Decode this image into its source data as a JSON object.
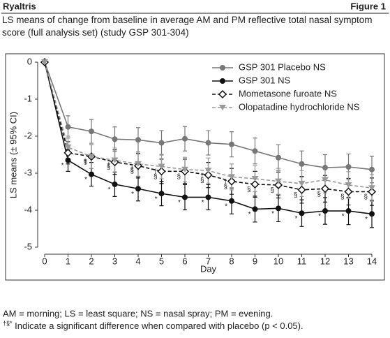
{
  "header": {
    "left": "Ryaltris",
    "right": "Figure 1"
  },
  "chart_data": {
    "type": "line",
    "title": "LS means of change from baseline in average AM and PM reflective total nasal symptom score (full analysis set) (study GSP 301-304)",
    "x_label": "Day",
    "y_label": "LS means (± 95% CI)",
    "x": [
      0,
      1,
      2,
      3,
      4,
      5,
      6,
      7,
      8,
      9,
      10,
      11,
      12,
      13,
      14
    ],
    "xlim": [
      0,
      14
    ],
    "xticks": [
      0,
      1,
      2,
      3,
      4,
      5,
      6,
      7,
      8,
      9,
      10,
      11,
      12,
      13,
      14
    ],
    "ylim": [
      -5,
      0
    ],
    "yticks": [
      0,
      -1,
      -2,
      -3,
      -4,
      -5
    ],
    "legend": "top-right",
    "series": [
      {
        "name": "GSP 301 Placebo NS",
        "color": "#777777",
        "dashed": false,
        "marker": "circle",
        "values": [
          0,
          -1.75,
          -1.87,
          -2.08,
          -2.1,
          -2.18,
          -2.07,
          -2.18,
          -2.22,
          -2.4,
          -2.58,
          -2.75,
          -2.85,
          -2.83,
          -2.9
        ],
        "errors": [
          0,
          0.3,
          0.32,
          0.33,
          0.33,
          0.33,
          0.33,
          0.33,
          0.34,
          0.35,
          0.35,
          0.35,
          0.35,
          0.35,
          0.36
        ],
        "symbols": [
          null,
          null,
          null,
          null,
          null,
          null,
          null,
          null,
          null,
          null,
          null,
          null,
          null,
          null,
          null
        ]
      },
      {
        "name": "GSP 301 NS",
        "color": "#111111",
        "dashed": false,
        "marker": "circle",
        "values": [
          0,
          -2.65,
          -3.03,
          -3.3,
          -3.42,
          -3.55,
          -3.65,
          -3.65,
          -3.75,
          -3.97,
          -3.95,
          -4.08,
          -4.02,
          -4.02,
          -4.1
        ],
        "errors": [
          0,
          0.3,
          0.32,
          0.33,
          0.33,
          0.33,
          0.34,
          0.34,
          0.35,
          0.35,
          0.36,
          0.36,
          0.36,
          0.37,
          0.37
        ],
        "symbols": [
          null,
          "*",
          "*",
          "*",
          "*",
          "*",
          "*",
          "*",
          "*",
          "*",
          "*",
          "*",
          "*",
          "*",
          "*"
        ]
      },
      {
        "name": "Mometasone furoate NS",
        "color": "#111111",
        "dashed": true,
        "marker": "diamond-open",
        "values": [
          0,
          -2.45,
          -2.55,
          -2.7,
          -2.8,
          -2.95,
          -2.95,
          -3.05,
          -3.22,
          -3.3,
          -3.32,
          -3.45,
          -3.42,
          -3.5,
          -3.5
        ],
        "errors": [
          0,
          0.3,
          0.32,
          0.33,
          0.33,
          0.33,
          0.33,
          0.34,
          0.35,
          0.35,
          0.35,
          0.36,
          0.36,
          0.36,
          0.37
        ],
        "symbols": [
          null,
          null,
          "§",
          "§",
          "§",
          "§",
          "§",
          "§",
          "§",
          "§",
          "§",
          "§",
          "§",
          "§",
          "§"
        ]
      },
      {
        "name": "Olopatadine hydrochloride NS",
        "color": "#999999",
        "dashed": true,
        "marker": "triangle-down",
        "values": [
          0,
          -2.3,
          -2.55,
          -2.65,
          -2.75,
          -2.82,
          -2.9,
          -2.93,
          -3.1,
          -3.15,
          -3.22,
          -3.28,
          -3.18,
          -3.32,
          -3.4
        ],
        "errors": [
          0,
          0.3,
          0.32,
          0.33,
          0.33,
          0.33,
          0.33,
          0.34,
          0.35,
          0.35,
          0.35,
          0.35,
          0.35,
          0.36,
          0.36
        ],
        "symbols": [
          null,
          null,
          "†",
          "†",
          "†",
          "†",
          null,
          "†",
          "†",
          null,
          null,
          null,
          null,
          null,
          null
        ]
      }
    ]
  },
  "footnotes": [
    {
      "text": "AM = morning; LS = least square; NS = nasal spray; PM = evening."
    },
    {
      "symbols": "†§*",
      "text": " Indicate a significant difference when compared with placebo (p < 0.05)."
    }
  ]
}
